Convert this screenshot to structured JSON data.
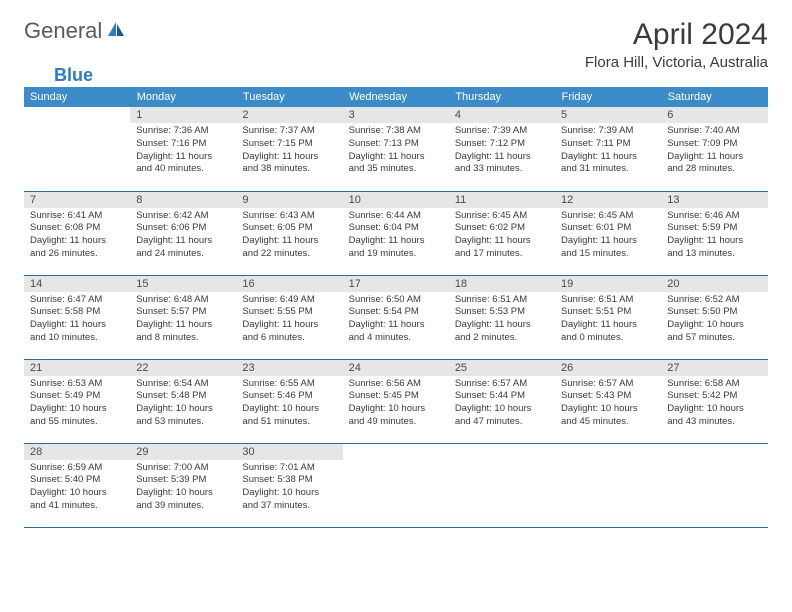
{
  "logo": {
    "part1": "General",
    "part2": "Blue"
  },
  "title": "April 2024",
  "location": "Flora Hill, Victoria, Australia",
  "columns": [
    "Sunday",
    "Monday",
    "Tuesday",
    "Wednesday",
    "Thursday",
    "Friday",
    "Saturday"
  ],
  "colors": {
    "header_bg": "#3b8bc9",
    "header_text": "#ffffff",
    "daynum_bg": "#e6e6e6",
    "border": "#2d6a9e",
    "text": "#3a3a3a",
    "logo_gray": "#5a5a5a",
    "logo_blue": "#2d7cc0"
  },
  "weeks": [
    [
      null,
      {
        "n": "1",
        "sr": "7:36 AM",
        "ss": "7:16 PM",
        "dh": "11",
        "dm": "40"
      },
      {
        "n": "2",
        "sr": "7:37 AM",
        "ss": "7:15 PM",
        "dh": "11",
        "dm": "38"
      },
      {
        "n": "3",
        "sr": "7:38 AM",
        "ss": "7:13 PM",
        "dh": "11",
        "dm": "35"
      },
      {
        "n": "4",
        "sr": "7:39 AM",
        "ss": "7:12 PM",
        "dh": "11",
        "dm": "33"
      },
      {
        "n": "5",
        "sr": "7:39 AM",
        "ss": "7:11 PM",
        "dh": "11",
        "dm": "31"
      },
      {
        "n": "6",
        "sr": "7:40 AM",
        "ss": "7:09 PM",
        "dh": "11",
        "dm": "28"
      }
    ],
    [
      {
        "n": "7",
        "sr": "6:41 AM",
        "ss": "6:08 PM",
        "dh": "11",
        "dm": "26"
      },
      {
        "n": "8",
        "sr": "6:42 AM",
        "ss": "6:06 PM",
        "dh": "11",
        "dm": "24"
      },
      {
        "n": "9",
        "sr": "6:43 AM",
        "ss": "6:05 PM",
        "dh": "11",
        "dm": "22"
      },
      {
        "n": "10",
        "sr": "6:44 AM",
        "ss": "6:04 PM",
        "dh": "11",
        "dm": "19"
      },
      {
        "n": "11",
        "sr": "6:45 AM",
        "ss": "6:02 PM",
        "dh": "11",
        "dm": "17"
      },
      {
        "n": "12",
        "sr": "6:45 AM",
        "ss": "6:01 PM",
        "dh": "11",
        "dm": "15"
      },
      {
        "n": "13",
        "sr": "6:46 AM",
        "ss": "5:59 PM",
        "dh": "11",
        "dm": "13"
      }
    ],
    [
      {
        "n": "14",
        "sr": "6:47 AM",
        "ss": "5:58 PM",
        "dh": "11",
        "dm": "10"
      },
      {
        "n": "15",
        "sr": "6:48 AM",
        "ss": "5:57 PM",
        "dh": "11",
        "dm": "8"
      },
      {
        "n": "16",
        "sr": "6:49 AM",
        "ss": "5:55 PM",
        "dh": "11",
        "dm": "6"
      },
      {
        "n": "17",
        "sr": "6:50 AM",
        "ss": "5:54 PM",
        "dh": "11",
        "dm": "4"
      },
      {
        "n": "18",
        "sr": "6:51 AM",
        "ss": "5:53 PM",
        "dh": "11",
        "dm": "2"
      },
      {
        "n": "19",
        "sr": "6:51 AM",
        "ss": "5:51 PM",
        "dh": "11",
        "dm": "0"
      },
      {
        "n": "20",
        "sr": "6:52 AM",
        "ss": "5:50 PM",
        "dh": "10",
        "dm": "57"
      }
    ],
    [
      {
        "n": "21",
        "sr": "6:53 AM",
        "ss": "5:49 PM",
        "dh": "10",
        "dm": "55"
      },
      {
        "n": "22",
        "sr": "6:54 AM",
        "ss": "5:48 PM",
        "dh": "10",
        "dm": "53"
      },
      {
        "n": "23",
        "sr": "6:55 AM",
        "ss": "5:46 PM",
        "dh": "10",
        "dm": "51"
      },
      {
        "n": "24",
        "sr": "6:56 AM",
        "ss": "5:45 PM",
        "dh": "10",
        "dm": "49"
      },
      {
        "n": "25",
        "sr": "6:57 AM",
        "ss": "5:44 PM",
        "dh": "10",
        "dm": "47"
      },
      {
        "n": "26",
        "sr": "6:57 AM",
        "ss": "5:43 PM",
        "dh": "10",
        "dm": "45"
      },
      {
        "n": "27",
        "sr": "6:58 AM",
        "ss": "5:42 PM",
        "dh": "10",
        "dm": "43"
      }
    ],
    [
      {
        "n": "28",
        "sr": "6:59 AM",
        "ss": "5:40 PM",
        "dh": "10",
        "dm": "41"
      },
      {
        "n": "29",
        "sr": "7:00 AM",
        "ss": "5:39 PM",
        "dh": "10",
        "dm": "39"
      },
      {
        "n": "30",
        "sr": "7:01 AM",
        "ss": "5:38 PM",
        "dh": "10",
        "dm": "37"
      },
      null,
      null,
      null,
      null
    ]
  ],
  "labels": {
    "sunrise": "Sunrise:",
    "sunset": "Sunset:",
    "daylight": "Daylight:",
    "hours": "hours",
    "and": "and",
    "minutes": "minutes."
  }
}
